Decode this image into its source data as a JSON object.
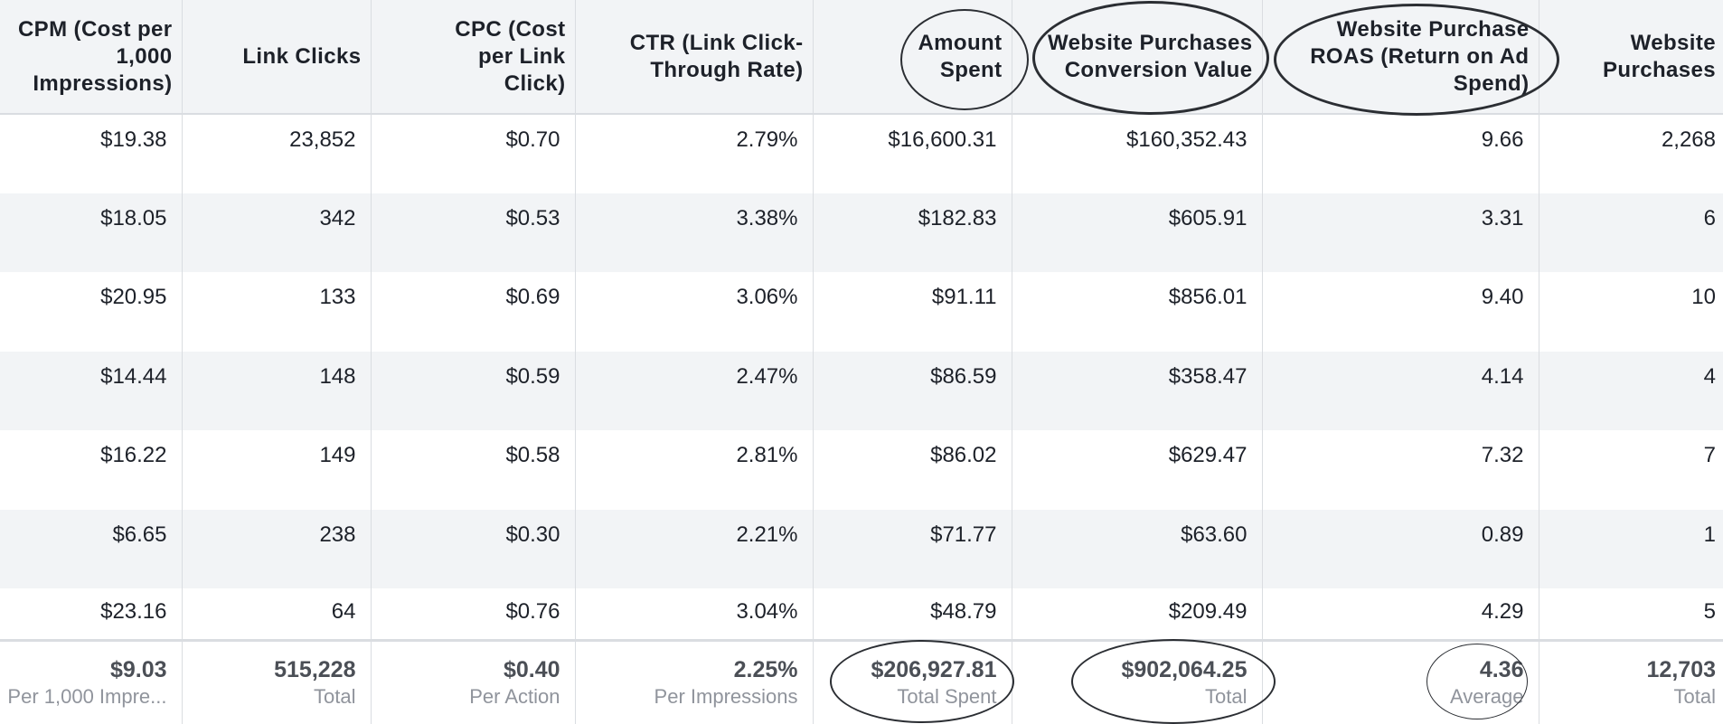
{
  "columns": [
    "CPM (Cost per 1,000 Impressions)",
    "Link Clicks",
    "CPC (Cost per Link Click)",
    "CTR (Link Click-Through Rate)",
    "Amount Spent",
    "Website Purchases Conversion Value",
    "Website Purchase ROAS (Return on Ad Spend)",
    "Website Purchases"
  ],
  "rows": [
    [
      "$19.38",
      "23,852",
      "$0.70",
      "2.79%",
      "$16,600.31",
      "$160,352.43",
      "9.66",
      "2,268"
    ],
    [
      "$18.05",
      "342",
      "$0.53",
      "3.38%",
      "$182.83",
      "$605.91",
      "3.31",
      "6"
    ],
    [
      "$20.95",
      "133",
      "$0.69",
      "3.06%",
      "$91.11",
      "$856.01",
      "9.40",
      "10"
    ],
    [
      "$14.44",
      "148",
      "$0.59",
      "2.47%",
      "$86.59",
      "$358.47",
      "4.14",
      "4"
    ],
    [
      "$16.22",
      "149",
      "$0.58",
      "2.81%",
      "$86.02",
      "$629.47",
      "7.32",
      "7"
    ],
    [
      "$6.65",
      "238",
      "$0.30",
      "2.21%",
      "$71.77",
      "$63.60",
      "0.89",
      "1"
    ],
    [
      "$23.16",
      "64",
      "$0.76",
      "3.04%",
      "$48.79",
      "$209.49",
      "4.29",
      "5"
    ]
  ],
  "totals": [
    {
      "value": "$9.03",
      "label": "Per 1,000 Impre..."
    },
    {
      "value": "515,228",
      "label": "Total"
    },
    {
      "value": "$0.40",
      "label": "Per Action"
    },
    {
      "value": "2.25%",
      "label": "Per Impressions"
    },
    {
      "value": "$206,927.81",
      "label": "Total Spent"
    },
    {
      "value": "$902,064.25",
      "label": "Total"
    },
    {
      "value": "4.36",
      "label": "Average"
    },
    {
      "value": "12,703",
      "label": "Total"
    }
  ],
  "colors": {
    "header_bg": "#f2f4f6",
    "stripe_bg": "#f2f4f6",
    "grid_line": "#dadde1",
    "text": "#1d2129",
    "total_value": "#4b4f56",
    "total_label": "#90949c",
    "annotation_ring": "#2b2e33"
  }
}
